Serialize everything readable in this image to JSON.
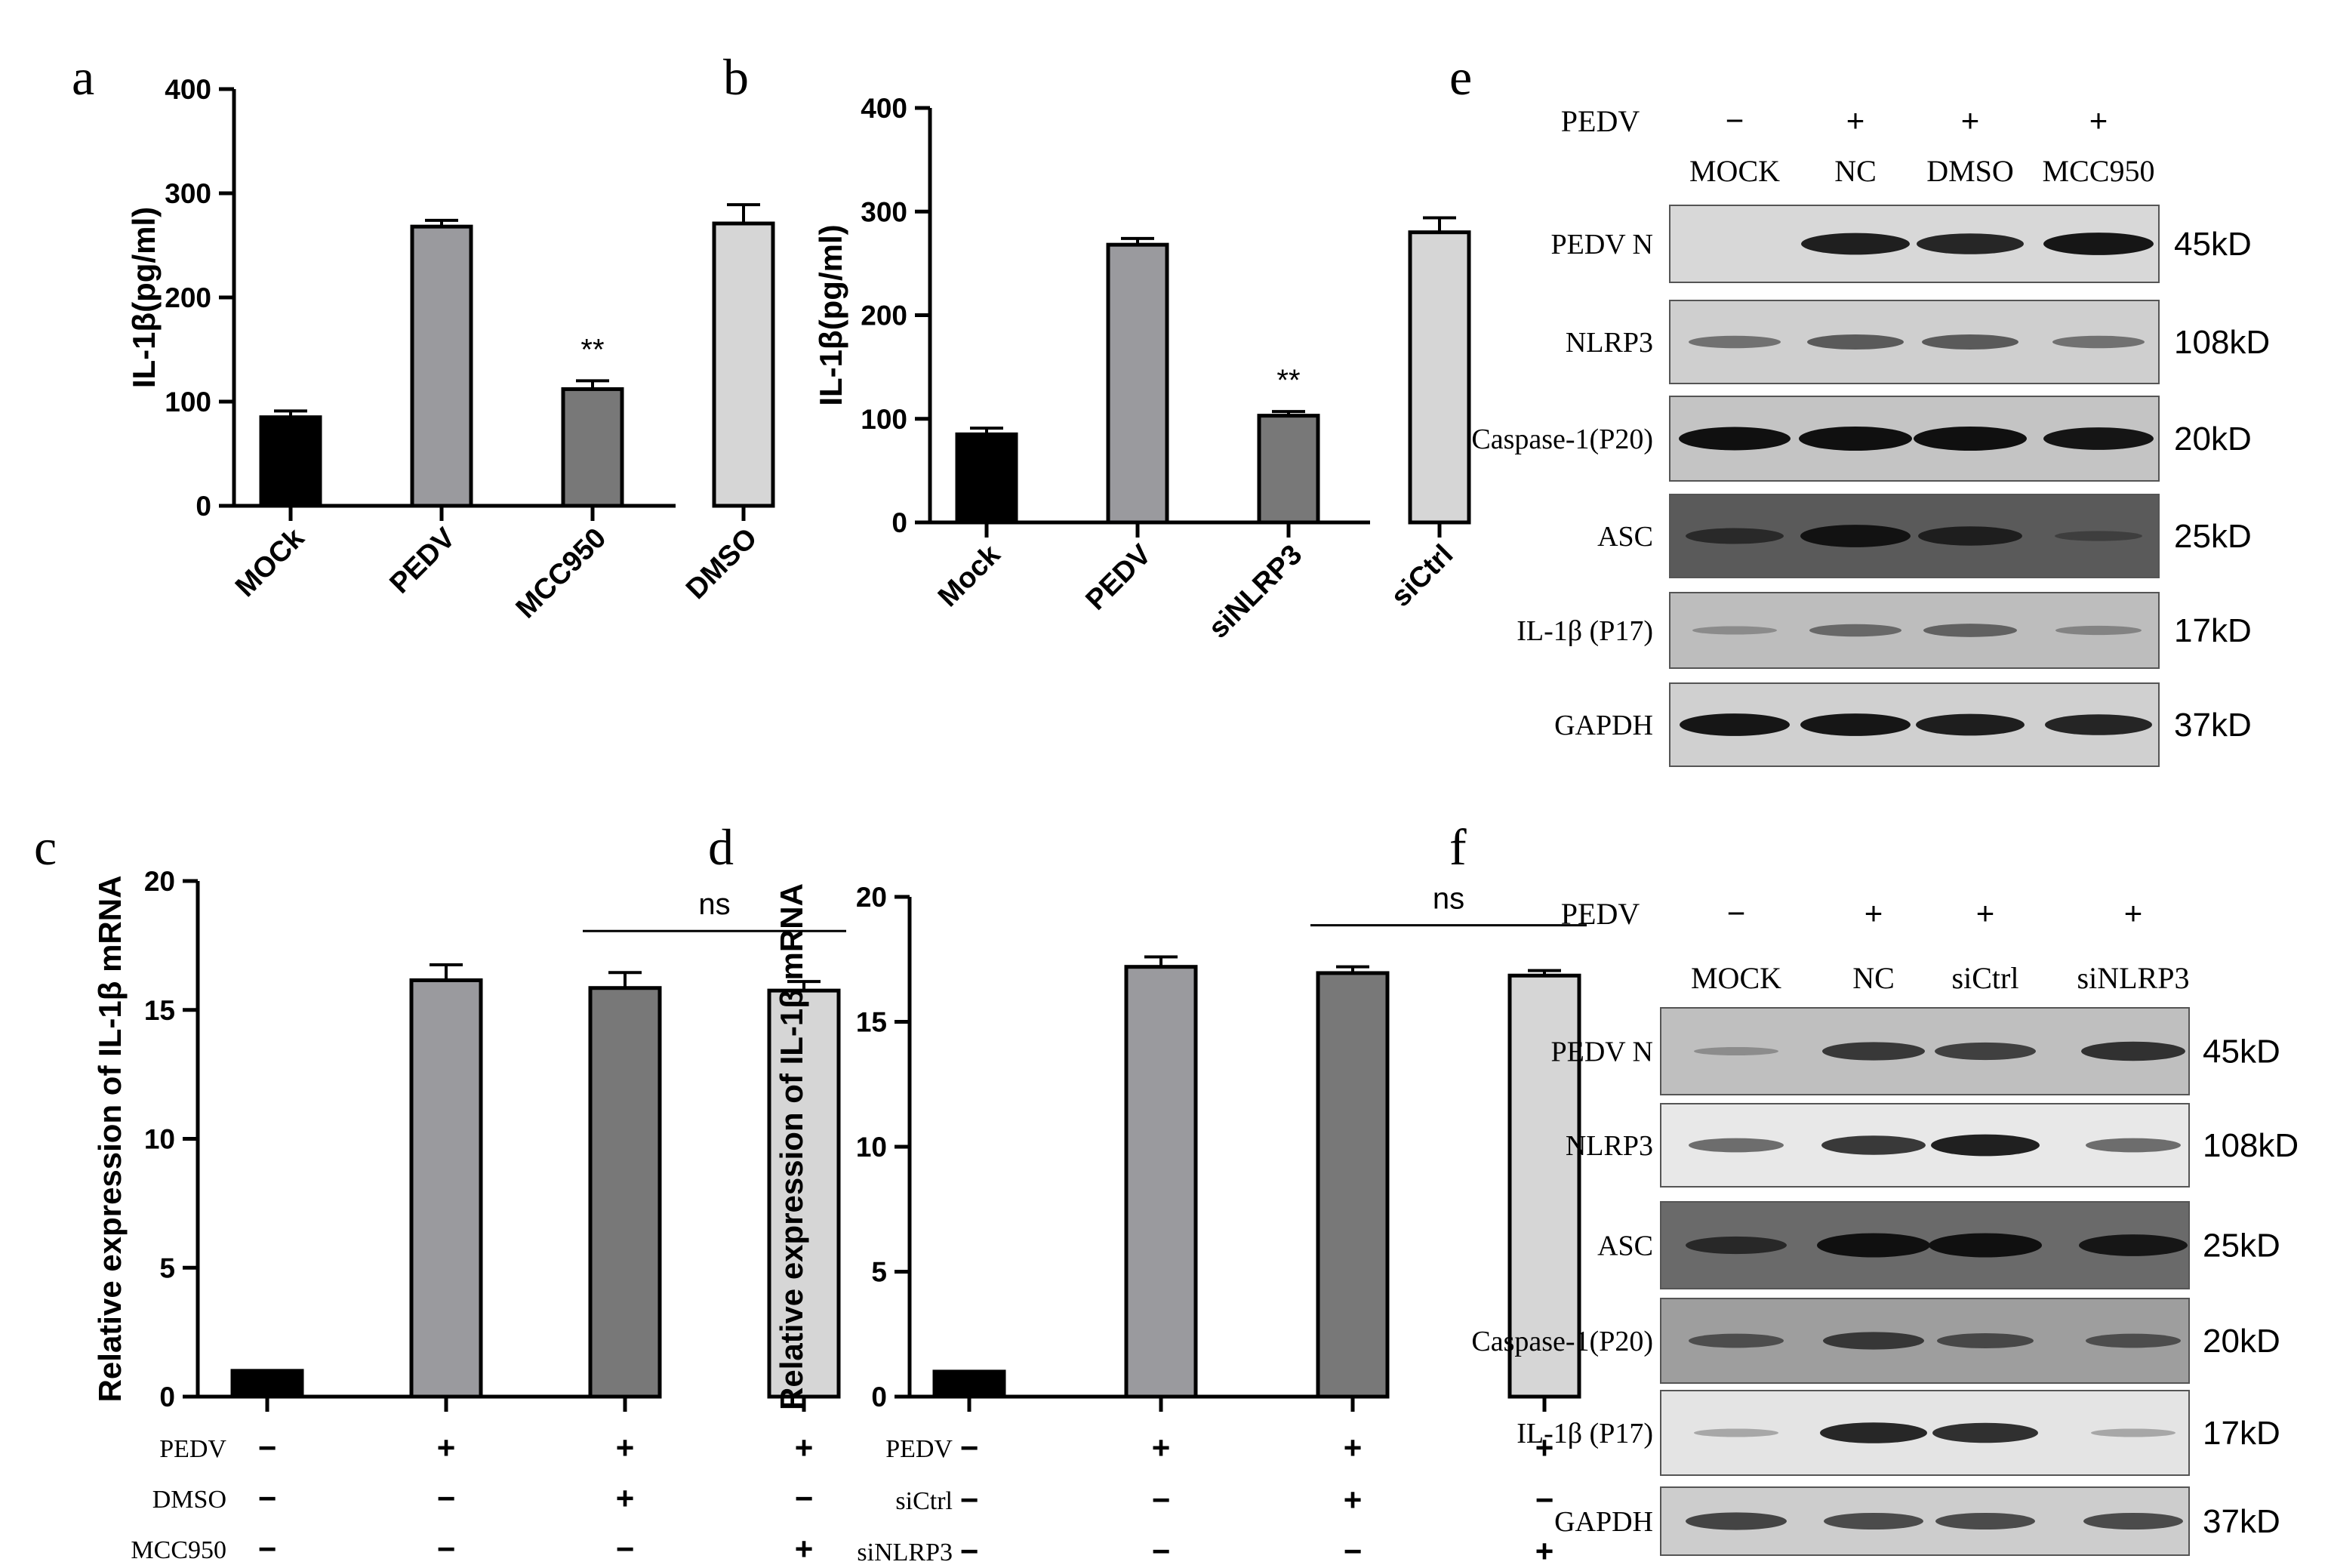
{
  "chart_data": [
    {
      "panel": "a",
      "type": "bar",
      "ylabel": "IL-1β(pg/ml)",
      "ylim": [
        0,
        400
      ],
      "yticks": [
        "0",
        "100",
        "200",
        "300",
        "400"
      ],
      "categories": [
        "MOCk",
        "PEDV",
        "MCC950",
        "DMSO"
      ],
      "values": [
        85,
        268,
        112,
        271
      ],
      "errors": [
        6,
        6,
        8,
        18
      ],
      "colors": [
        "#000000",
        "#9a9a9e",
        "#787878",
        "#d6d6d6"
      ],
      "annotations": [
        {
          "bar": 2,
          "text": "**"
        }
      ]
    },
    {
      "panel": "b",
      "type": "bar",
      "ylabel": "IL-1β(pg/ml)",
      "ylim": [
        0,
        400
      ],
      "yticks": [
        "0",
        "100",
        "200",
        "300",
        "400"
      ],
      "categories": [
        "Mock",
        "PEDV",
        "siNLRP3",
        "siCtrl"
      ],
      "values": [
        85,
        268,
        103,
        280
      ],
      "errors": [
        6,
        6,
        4,
        14
      ],
      "colors": [
        "#000000",
        "#9a9a9e",
        "#787878",
        "#d6d6d6"
      ],
      "annotations": [
        {
          "bar": 2,
          "text": "**"
        }
      ]
    },
    {
      "panel": "c",
      "type": "bar",
      "ylabel": "Relative expression of  IL-1β mRNA",
      "ylim": [
        0,
        20
      ],
      "yticks": [
        "0",
        "5",
        "10",
        "15",
        "20"
      ],
      "values": [
        1,
        16.15,
        15.85,
        15.75
      ],
      "errors": [
        0,
        0.6,
        0.6,
        0.35
      ],
      "colors": [
        "#000000",
        "#9a9a9e",
        "#787878",
        "#d6d6d6"
      ],
      "significance": {
        "from": 2,
        "to": 3,
        "text": "ns"
      },
      "treatments": [
        {
          "label": "PEDV",
          "signs": [
            "−",
            "+",
            "+",
            "+"
          ]
        },
        {
          "label": "DMSO",
          "signs": [
            "−",
            "−",
            "+",
            "−"
          ]
        },
        {
          "label": "MCC950",
          "signs": [
            "−",
            "−",
            "−",
            "+"
          ]
        }
      ]
    },
    {
      "panel": "d",
      "type": "bar",
      "ylabel": "Relative expression of  IL-1β mRNA",
      "ylim": [
        0,
        20
      ],
      "yticks": [
        "0",
        "5",
        "10",
        "15",
        "20"
      ],
      "values": [
        1,
        17.2,
        16.95,
        16.85
      ],
      "errors": [
        0,
        0.4,
        0.25,
        0.2
      ],
      "colors": [
        "#000000",
        "#9a9a9e",
        "#787878",
        "#d6d6d6"
      ],
      "significance": {
        "from": 2,
        "to": 3,
        "text": "ns"
      },
      "treatments": [
        {
          "label": "PEDV",
          "signs": [
            "−",
            "+",
            "+",
            "+"
          ]
        },
        {
          "label": "siCtrl",
          "signs": [
            "−",
            "−",
            "+",
            "−"
          ]
        },
        {
          "label": "siNLRP3",
          "signs": [
            "−",
            "−",
            "−",
            "+"
          ]
        }
      ]
    }
  ],
  "blots": [
    {
      "panel": "e",
      "pedv_label": "PEDV",
      "pedv_signs": [
        "−",
        "+",
        "+",
        "+"
      ],
      "lanes": [
        "MOCK",
        "NC",
        "DMSO",
        "MCC950"
      ],
      "rows": [
        {
          "label": "PEDV N",
          "kd": "45kD",
          "bg": "#d8d8d8",
          "bands": [
            0,
            0.85,
            0.8,
            0.9
          ]
        },
        {
          "label": "NLRP3",
          "kd": "108kD",
          "bg": "#cfcfcf",
          "bands": [
            0.3,
            0.45,
            0.45,
            0.3
          ]
        },
        {
          "label": "Caspase-1(P20)",
          "kd": "20kD",
          "bg": "#c4c4c4",
          "bands": [
            0.95,
            1,
            1,
            0.9
          ]
        },
        {
          "label": "ASC",
          "kd": "25kD",
          "bg": "#5a5a5a",
          "bands": [
            0.5,
            0.9,
            0.7,
            0.15
          ]
        },
        {
          "label": "IL-1β (P17)",
          "kd": "17kD",
          "bg": "#bdbdbd",
          "bands": [
            0.05,
            0.3,
            0.35,
            0.1
          ]
        },
        {
          "label": "GAPDH",
          "kd": "37kD",
          "bg": "#d0d0d0",
          "bands": [
            0.9,
            0.9,
            0.85,
            0.8
          ]
        }
      ]
    },
    {
      "panel": "f",
      "pedv_label": "PEDV",
      "pedv_signs": [
        "−",
        "+",
        "+",
        "+"
      ],
      "lanes": [
        "MOCK",
        "NC",
        "siCtrl",
        "siNLRP3"
      ],
      "rows": [
        {
          "label": "PEDV N",
          "kd": "45kD",
          "bg": "#bfbfbf",
          "bands": [
            0.05,
            0.65,
            0.6,
            0.7
          ]
        },
        {
          "label": "NLRP3",
          "kd": "108kD",
          "bg": "#e8e8e8",
          "bands": [
            0.4,
            0.7,
            0.85,
            0.4
          ]
        },
        {
          "label": "ASC",
          "kd": "25kD",
          "bg": "#6a6a6a",
          "bands": [
            0.6,
            1,
            1,
            0.85
          ]
        },
        {
          "label": "Caspase-1(P20)",
          "kd": "20kD",
          "bg": "#9e9e9e",
          "bands": [
            0.4,
            0.6,
            0.45,
            0.4
          ]
        },
        {
          "label": "IL-1β (P17)",
          "kd": "17kD",
          "bg": "#e4e4e4",
          "bands": [
            0.05,
            0.8,
            0.75,
            0.05
          ]
        },
        {
          "label": "GAPDH",
          "kd": "37kD",
          "bg": "#cdcdcd",
          "bands": [
            0.6,
            0.55,
            0.55,
            0.55
          ]
        }
      ]
    }
  ]
}
